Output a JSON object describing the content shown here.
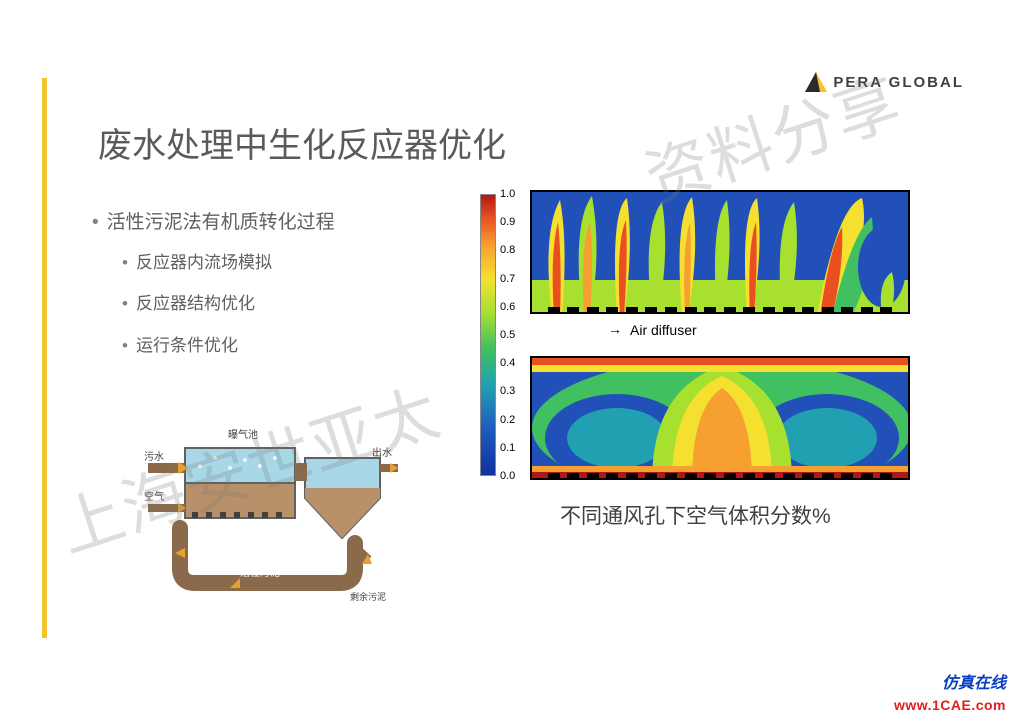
{
  "logo": {
    "text": "PERA GLOBAL"
  },
  "title": "废水处理中生化反应器优化",
  "bullets": {
    "main": "活性污泥法有机质转化过程",
    "sub1": "反应器内流场模拟",
    "sub2": "反应器结构优化",
    "sub3": "运行条件优化"
  },
  "process_diagram": {
    "labels": {
      "aeration_tank": "曝气池",
      "sewage_in": "污水",
      "air_in": "空气",
      "water_out": "出水",
      "active_sludge": "活性污泥",
      "excess_sludge": "剩余污泥"
    },
    "colors": {
      "water": "#a8d8e8",
      "sludge": "#9a7a5a",
      "pipe": "#8a6a4a",
      "tank_border": "#606060",
      "arrow": "#e8a030"
    }
  },
  "cfd": {
    "caption": "不同通风孔下空气体积分数%",
    "mid_label": "Air diffuser",
    "colorbar": {
      "ticks": [
        "1.0",
        "0.9",
        "0.8",
        "0.7",
        "0.6",
        "0.5",
        "0.4",
        "0.3",
        "0.2",
        "0.1",
        "0.0"
      ],
      "colors_top_to_bottom": [
        "#b01818",
        "#e85020",
        "#f5a030",
        "#f5e030",
        "#a8e030",
        "#40c060",
        "#20a0b0",
        "#2060c0",
        "#1030a0"
      ]
    },
    "panel_border": "#000000",
    "diffusers": {
      "top_count": 18,
      "bot_count": 18
    }
  },
  "watermark": {
    "line1": "上海安世亚太",
    "line2": "资料分享"
  },
  "footer": {
    "brand": "仿真在线",
    "url": "www.1CAE.com"
  },
  "accent_bar_color": "#f4c430"
}
